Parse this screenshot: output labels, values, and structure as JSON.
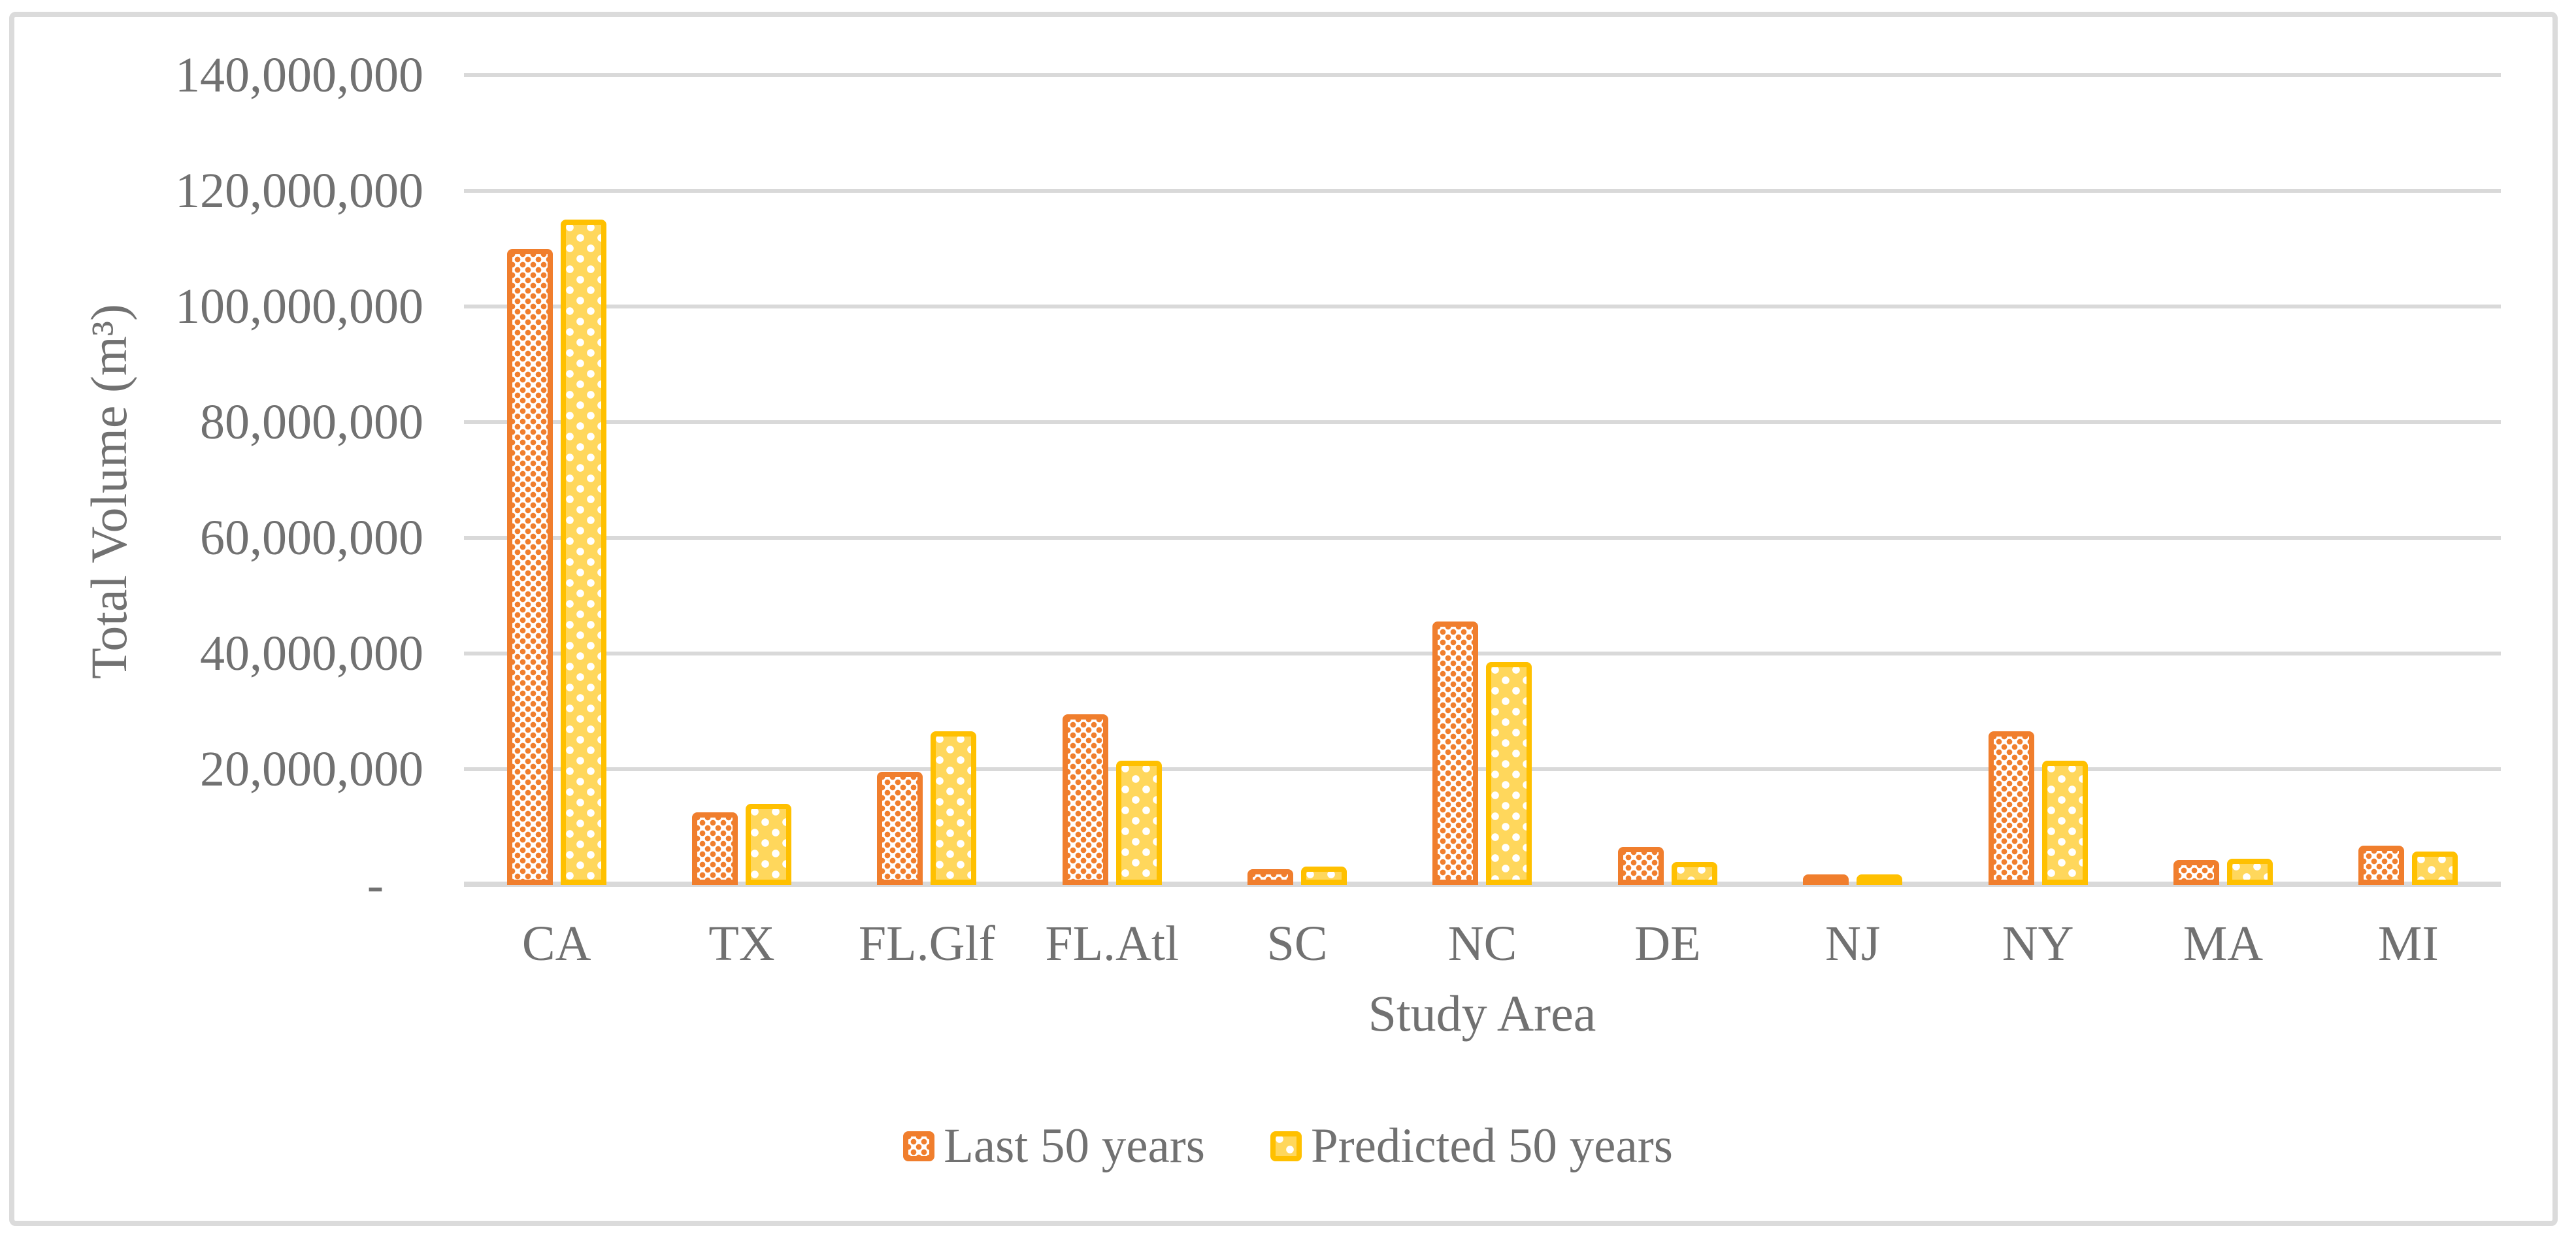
{
  "chart_data": {
    "type": "bar",
    "title": "",
    "xlabel": "Study Area",
    "ylabel": "Total Volume (m³)",
    "categories": [
      "CA",
      "TX",
      "FL.Glf",
      "FL.Atl",
      "SC",
      "NC",
      "DE",
      "NJ",
      "NY",
      "MA",
      "MI"
    ],
    "series": [
      {
        "name": "Last 50 years",
        "border_color": "#f07e2d",
        "fill_style": "white with orange dot pattern",
        "values": [
          110000000,
          12500000,
          19500000,
          29500000,
          2700000,
          45500000,
          6500000,
          1000000,
          26500000,
          4300000,
          6800000
        ]
      },
      {
        "name": "Predicted 50 years",
        "border_color": "#ffc000",
        "fill_style": "gold with white dot pattern",
        "values": [
          115000000,
          14000000,
          26500000,
          21500000,
          3200000,
          38500000,
          4000000,
          900000,
          21500000,
          4500000,
          5800000
        ]
      }
    ],
    "ylim": [
      0,
      140000000
    ],
    "yticks": [
      {
        "label": "140,000,000",
        "value": 140000000
      },
      {
        "label": "120,000,000",
        "value": 120000000
      },
      {
        "label": "100,000,000",
        "value": 100000000
      },
      {
        "label": "80,000,000",
        "value": 80000000
      },
      {
        "label": "60,000,000",
        "value": 60000000
      },
      {
        "label": "40,000,000",
        "value": 40000000
      },
      {
        "label": "20,000,000",
        "value": 20000000
      },
      {
        "label": "-",
        "value": 0
      }
    ],
    "grid": "horizontal",
    "legend_position": "bottom",
    "colors": {
      "gridline": "#d9d9d9",
      "frame_border": "#dbdbdb",
      "text": "#717171",
      "orange_accent": "#f07e2d",
      "gold_accent": "#ffc000",
      "gold_fill": "#ffd75c"
    }
  }
}
